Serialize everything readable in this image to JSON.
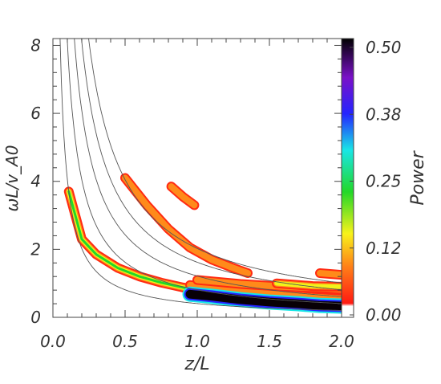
{
  "chart_data": {
    "type": "heatmap",
    "title": "",
    "xlabel": "z/L",
    "ylabel": "ωL/v_A0",
    "xlim": [
      0.0,
      2.0
    ],
    "ylim": [
      0.0,
      8.2
    ],
    "x_ticks": [
      "0.0",
      "0.5",
      "1.0",
      "1.5",
      "2.0"
    ],
    "y_ticks": [
      "0",
      "2",
      "4",
      "6",
      "8"
    ],
    "colorbar": {
      "label": "Power",
      "range": [
        0.0,
        0.5
      ],
      "ticks": [
        "0.00",
        "0.12",
        "0.25",
        "0.38",
        "0.50"
      ]
    },
    "colors": {
      "low": "#ff2a12",
      "orange": "#ff8a1a",
      "yellow": "#f2f21a",
      "green": "#22d828",
      "cyan": "#19e6e6",
      "blue": "#2424ff",
      "peak": "#080006"
    },
    "reference_curves": [
      {
        "c": 0.405
      },
      {
        "c": 0.81
      },
      {
        "c": 1.215
      },
      {
        "c": 1.62
      },
      {
        "c": 2.025
      }
    ],
    "power_ridges": [
      {
        "points": [
          [
            0.11,
            3.7
          ],
          [
            0.2,
            2.3
          ],
          [
            0.3,
            1.85
          ],
          [
            0.45,
            1.45
          ],
          [
            0.6,
            1.2
          ],
          [
            0.75,
            1.02
          ],
          [
            0.9,
            0.88
          ],
          [
            1.0,
            0.8
          ]
        ],
        "power": 0.13
      },
      {
        "points": [
          [
            0.82,
            3.85
          ],
          [
            0.9,
            3.55
          ],
          [
            0.98,
            3.3
          ]
        ],
        "power": 0.05
      },
      {
        "points": [
          [
            0.5,
            4.1
          ],
          [
            0.65,
            3.3
          ],
          [
            0.8,
            2.6
          ],
          [
            0.95,
            2.05
          ],
          [
            1.1,
            1.7
          ],
          [
            1.25,
            1.45
          ],
          [
            1.35,
            1.3
          ]
        ],
        "power": 0.07
      },
      {
        "points": [
          [
            0.95,
            0.95
          ],
          [
            1.2,
            0.85
          ],
          [
            1.5,
            0.72
          ],
          [
            1.8,
            0.6
          ],
          [
            2.0,
            0.55
          ]
        ],
        "power": 0.06
      },
      {
        "points": [
          [
            1.0,
            1.1
          ],
          [
            1.3,
            0.98
          ],
          [
            1.6,
            0.9
          ],
          [
            1.9,
            0.85
          ],
          [
            2.0,
            0.82
          ]
        ],
        "power": 0.05
      },
      {
        "points": [
          [
            1.55,
            1.0
          ],
          [
            1.8,
            0.92
          ],
          [
            2.0,
            0.9
          ]
        ],
        "power": 0.1
      },
      {
        "points": [
          [
            1.85,
            1.3
          ],
          [
            2.0,
            1.25
          ]
        ],
        "power": 0.05
      },
      {
        "points": [
          [
            0.95,
            0.68
          ],
          [
            1.1,
            0.62
          ],
          [
            1.3,
            0.52
          ],
          [
            1.5,
            0.45
          ],
          [
            1.7,
            0.4
          ],
          [
            1.85,
            0.35
          ],
          [
            2.0,
            0.33
          ]
        ],
        "power": 0.5
      }
    ]
  }
}
